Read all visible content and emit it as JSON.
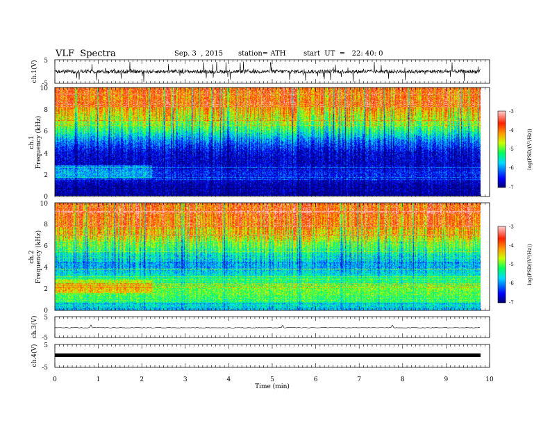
{
  "header": {
    "title": "VLF  Spectra",
    "date": "Sep. 3  , 2015",
    "station": "station= ATH",
    "start": "start  UT  =   22: 40: 0"
  },
  "chart_data": [
    {
      "type": "line",
      "name": "ch1-waveform",
      "ylabel": "ch.1(V)",
      "ylim": [
        -5,
        5
      ],
      "yticks": [
        "5",
        "-5"
      ],
      "xlim": [
        0,
        10
      ],
      "color": "#000000"
    },
    {
      "type": "heatmap",
      "name": "ch1-spectrogram",
      "ylabel_lines": [
        "ch.1",
        "Frequency  (kHz)"
      ],
      "ylim": [
        0,
        10
      ],
      "yticks": [
        "0",
        "2",
        "4",
        "6",
        "8",
        "10"
      ],
      "xlim": [
        0,
        9.8
      ],
      "colorbar": {
        "label": "log(PSD/(V²/Hz))",
        "range": [
          -7,
          -3
        ],
        "ticks": [
          "-3",
          "-4",
          "-5",
          "-6",
          "-7"
        ]
      },
      "log_psd_profile": {
        "freq_khz": [
          0,
          0.5,
          1,
          2,
          3,
          4,
          5,
          6,
          7,
          8,
          9,
          10
        ],
        "value": [
          -6.9,
          -6.8,
          -6.8,
          -6.4,
          -6.7,
          -6.6,
          -6.1,
          -5.3,
          -4.7,
          -4.2,
          -3.9,
          -3.8
        ]
      }
    },
    {
      "type": "heatmap",
      "name": "ch2-spectrogram",
      "ylabel_lines": [
        "ch.2",
        "Frequency  (kHz)"
      ],
      "ylim": [
        0,
        10
      ],
      "yticks": [
        "0",
        "2",
        "4",
        "6",
        "8",
        "10"
      ],
      "xlim": [
        0,
        9.8
      ],
      "colorbar": {
        "label": "log(PSD/(V²/Hz))",
        "range": [
          -7,
          -3
        ],
        "ticks": [
          "-3",
          "-4",
          "-5",
          "-6",
          "-7"
        ]
      },
      "log_psd_profile": {
        "freq_khz": [
          0,
          0.5,
          1,
          2,
          3,
          4,
          5,
          6,
          7,
          8,
          9,
          10
        ],
        "value": [
          -5.8,
          -5.6,
          -5.2,
          -4.9,
          -5.4,
          -5.9,
          -5.6,
          -5.0,
          -4.4,
          -4.0,
          -3.8,
          -3.7
        ]
      }
    },
    {
      "type": "line",
      "name": "ch3-waveform",
      "ylabel": "ch.3(V)",
      "ylim": [
        -5,
        5
      ],
      "yticks": [
        "5",
        "-5"
      ],
      "xlim": [
        0,
        10
      ],
      "level": -0.3,
      "color": "#000000"
    },
    {
      "type": "line",
      "name": "ch4-waveform",
      "ylabel": "ch.4(V)",
      "ylim": [
        -5,
        5
      ],
      "yticks": [
        "5",
        "-5"
      ],
      "xlim": [
        0,
        10
      ],
      "level": 0,
      "color": "#000000"
    }
  ],
  "xaxis": {
    "label": "Time  (min)",
    "ticks": [
      "0",
      "1",
      "2",
      "3",
      "4",
      "5",
      "6",
      "7",
      "8",
      "9",
      "10"
    ],
    "xlim": [
      0,
      10
    ]
  },
  "colors": {
    "colormap": [
      "#00008b",
      "#0000ff",
      "#00c8ff",
      "#00ff66",
      "#c8ff00",
      "#ffa500",
      "#ff2000",
      "#ff9999"
    ]
  }
}
